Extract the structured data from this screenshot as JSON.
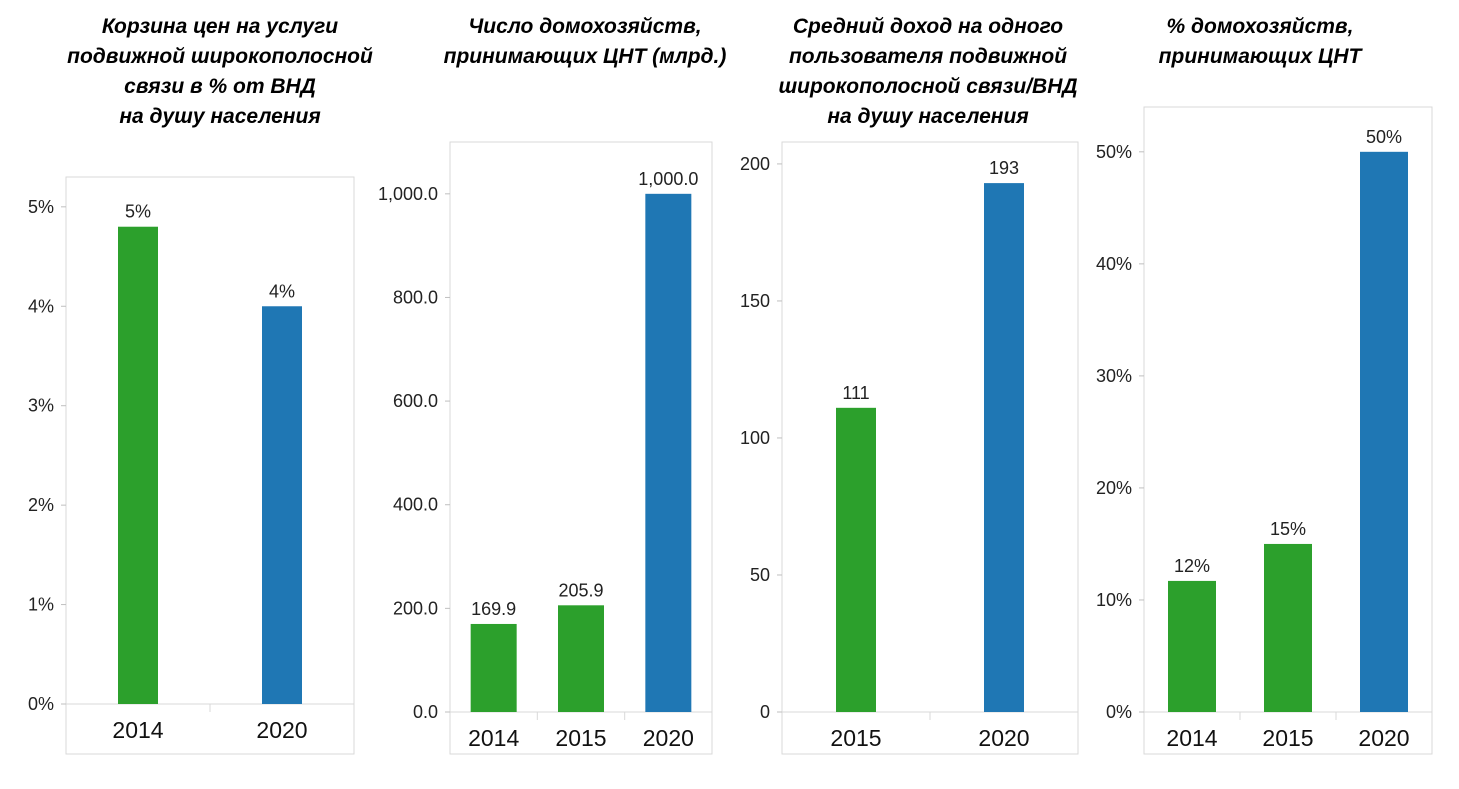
{
  "chart_data": [
    {
      "type": "bar",
      "title_lines": [
        "Корзина цен на услуги",
        "подвижной широкополосной",
        "связи в % от ВНД",
        "на душу населения"
      ],
      "categories": [
        "2014",
        "2020"
      ],
      "values": [
        4.8,
        4.0
      ],
      "value_labels": [
        "5%",
        "4%"
      ],
      "colors": [
        "#2ca02c",
        "#1f77b4"
      ],
      "ylim": [
        0,
        5.3
      ],
      "yticks": [
        0,
        1,
        2,
        3,
        4,
        5
      ],
      "ytick_labels": [
        "0%",
        "1%",
        "2%",
        "3%",
        "4%",
        "5%"
      ],
      "xlabel": "",
      "ylabel": ""
    },
    {
      "type": "bar",
      "title_lines": [
        "Число домохозяйств,",
        "принимающих ЦНТ (млрд.)"
      ],
      "categories": [
        "2014",
        "2015",
        "2020"
      ],
      "values": [
        169.9,
        205.9,
        1000.0
      ],
      "value_labels": [
        "169.9",
        "205.9",
        "1,000.0"
      ],
      "colors": [
        "#2ca02c",
        "#2ca02c",
        "#1f77b4"
      ],
      "ylim": [
        0,
        1100
      ],
      "yticks": [
        0,
        200,
        400,
        600,
        800,
        1000
      ],
      "ytick_labels": [
        "0.0",
        "200.0",
        "400.0",
        "600.0",
        "800.0",
        "1,000.0"
      ],
      "xlabel": "",
      "ylabel": ""
    },
    {
      "type": "bar",
      "title_lines": [
        "Средний доход на одного",
        "пользователя подвижной",
        "широкополосной связи/ВНД",
        "на душу населения"
      ],
      "categories": [
        "2015",
        "2020"
      ],
      "values": [
        111,
        193
      ],
      "value_labels": [
        "111",
        "193"
      ],
      "colors": [
        "#2ca02c",
        "#1f77b4"
      ],
      "ylim": [
        0,
        208
      ],
      "yticks": [
        0,
        50,
        100,
        150,
        200
      ],
      "ytick_labels": [
        "0",
        "50",
        "100",
        "150",
        "200"
      ],
      "xlabel": "",
      "ylabel": ""
    },
    {
      "type": "bar",
      "title_lines": [
        "% домохозяйств,",
        "принимающих ЦНТ"
      ],
      "categories": [
        "2014",
        "2015",
        "2020"
      ],
      "values": [
        11.7,
        15.0,
        50.0
      ],
      "value_labels": [
        "12%",
        "15%",
        "50%"
      ],
      "colors": [
        "#2ca02c",
        "#2ca02c",
        "#1f77b4"
      ],
      "ylim": [
        0,
        54
      ],
      "yticks": [
        0,
        10,
        20,
        30,
        40,
        50
      ],
      "ytick_labels": [
        "0%",
        "10%",
        "20%",
        "30%",
        "40%",
        "50%"
      ],
      "xlabel": "",
      "ylabel": ""
    }
  ]
}
